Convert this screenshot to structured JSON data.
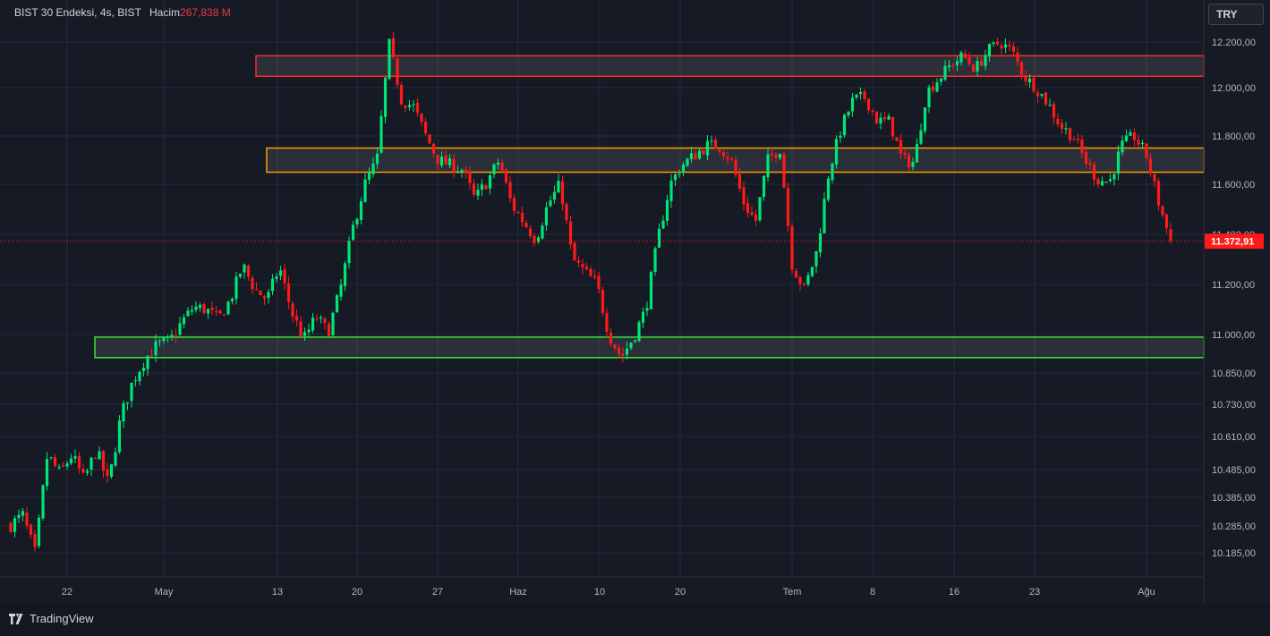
{
  "header": {
    "symbol": "BIST 30 Endeksi",
    "interval": "4s",
    "exchange": "BIST",
    "volume_label": "Hacim",
    "volume_value": "267,838 M"
  },
  "currency_button": "TRY",
  "footer": {
    "brand": "TradingView"
  },
  "colors": {
    "background": "#161a25",
    "up": "#00e676",
    "down": "#ff1a1a",
    "grid": "#262b3a",
    "zone_red": "#ff2a2a",
    "zone_orange": "#ff9800",
    "zone_green": "#39e639",
    "price_tag": "#ff1a1a"
  },
  "chart_data": {
    "type": "candlestick",
    "interval": "4 hours",
    "y_ticks": [
      "12.200,00",
      "12.000,00",
      "11.800,00",
      "11.600,00",
      "11.400,00",
      "11.200,00",
      "11.000,00",
      "10.850,00",
      "10.730,00",
      "10.610,00",
      "10.485,00",
      "10.385,00",
      "10.285,00",
      "10.185,00"
    ],
    "x_ticks": [
      "22",
      "May",
      "13",
      "20",
      "27",
      "Haz",
      "10",
      "20",
      "Tem",
      "8",
      "16",
      "23",
      "Ağu"
    ],
    "last_price": 11372.91,
    "last_price_label": "11.372,91",
    "zones": [
      {
        "color": "red",
        "low": 12050,
        "high": 12140
      },
      {
        "color": "orange",
        "low": 11650,
        "high": 11750
      },
      {
        "color": "green",
        "low": 10910,
        "high": 10990
      }
    ],
    "close_path": [
      10290,
      10320,
      10180,
      10540,
      10470,
      10540,
      10445,
      10560,
      10430,
      10680,
      10820,
      10905,
      10960,
      10970,
      11050,
      11110,
      11100,
      11060,
      11140,
      11275,
      11180,
      11140,
      11270,
      11090,
      10980,
      11070,
      11010,
      11180,
      11420,
      11600,
      11700,
      12190,
      11950,
      11920,
      11800,
      11700,
      11680,
      11660,
      11540,
      11610,
      11700,
      11520,
      11450,
      11380,
      11520,
      11600,
      11300,
      11250,
      11200,
      11000,
      10910,
      10990,
      11100,
      11380,
      11600,
      11680,
      11720,
      11760,
      11760,
      11700,
      11530,
      11450,
      11700,
      11750,
      11280,
      11180,
      11330,
      11650,
      11830,
      11950,
      11960,
      11860,
      11860,
      11700,
      11690,
      11980,
      12040,
      12100,
      12140,
      12080,
      12160,
      12200,
      12160,
      12050,
      12000,
      11930,
      11840,
      11800,
      11700,
      11620,
      11610,
      11760,
      11800,
      11720,
      11530,
      11372.91
    ]
  }
}
